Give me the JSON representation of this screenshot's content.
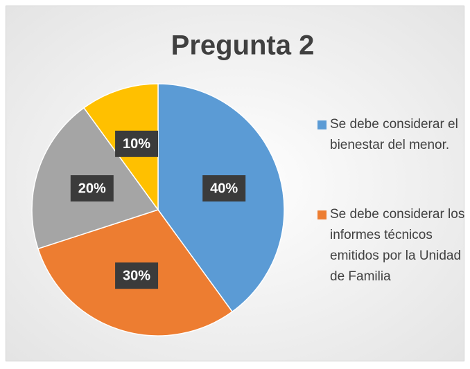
{
  "chart_data": {
    "type": "pie",
    "title": "Pregunta 2",
    "categories": [
      "Se debe considerar el bienestar del menor.",
      "Se debe considerar los informes técnicos emitidos por la Unidad de Familia",
      null,
      null
    ],
    "values": [
      40,
      30,
      20,
      10
    ],
    "value_labels": [
      "40%",
      "30%",
      "20%",
      "10%"
    ],
    "colors": [
      "#5b9bd5",
      "#ed7d31",
      "#a5a5a5",
      "#ffc000"
    ],
    "legend": "right"
  }
}
